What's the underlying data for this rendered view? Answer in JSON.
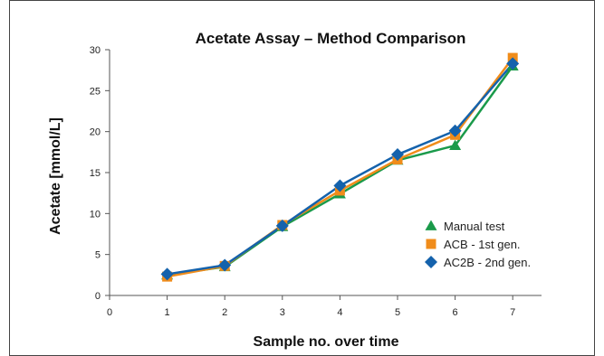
{
  "chart_data": {
    "type": "line",
    "title": "Acetate Assay – Method Comparison",
    "xlabel": "Sample no. over time",
    "ylabel": "Acetate [mmol/L]",
    "x": [
      1,
      2,
      3,
      4,
      5,
      6,
      7
    ],
    "xlim": [
      0,
      7.5
    ],
    "ylim": [
      0,
      30
    ],
    "xticks": [
      "0",
      "1",
      "2",
      "3",
      "4",
      "5",
      "6",
      "7"
    ],
    "yticks": [
      "0",
      "5",
      "10",
      "15",
      "20",
      "25",
      "30"
    ],
    "grid": false,
    "legend_position": "center-right",
    "series": [
      {
        "name": "Manual test",
        "color": "#1a9a4a",
        "marker": "triangle",
        "values": [
          2.5,
          3.5,
          8.4,
          12.4,
          16.5,
          18.3,
          28.0
        ]
      },
      {
        "name": "ACB - 1st gen.",
        "color": "#f08c1a",
        "marker": "square",
        "values": [
          2.3,
          3.6,
          8.6,
          12.8,
          16.6,
          19.6,
          29.0
        ]
      },
      {
        "name": "AC2B - 2nd gen.",
        "color": "#1462ac",
        "marker": "diamond",
        "values": [
          2.6,
          3.7,
          8.5,
          13.4,
          17.2,
          20.1,
          28.3
        ]
      }
    ]
  }
}
